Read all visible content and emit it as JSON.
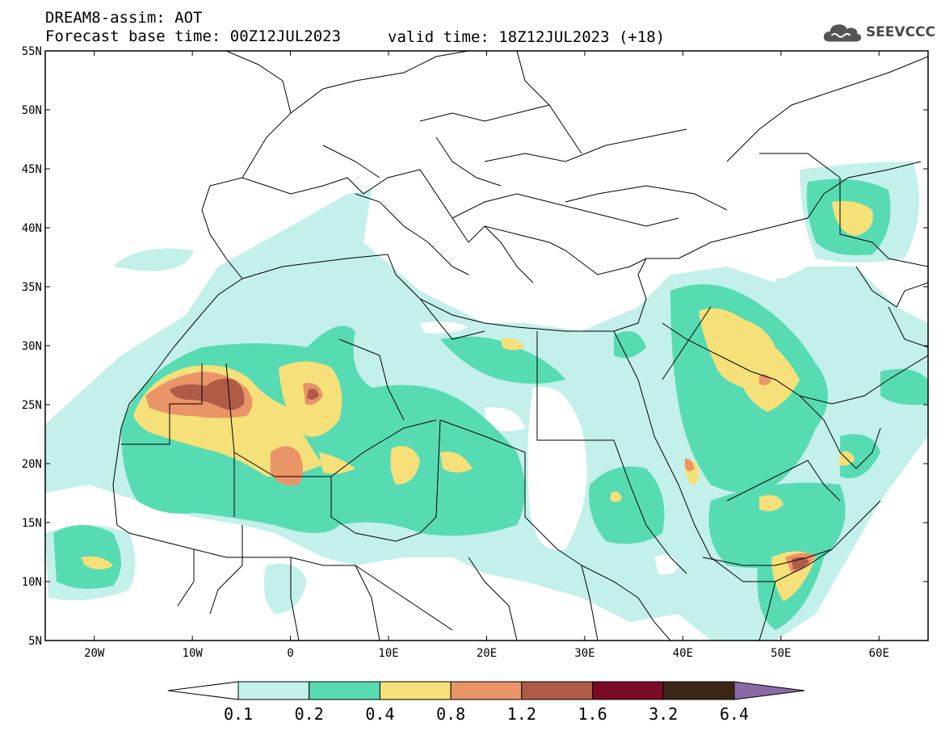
{
  "header": {
    "line1": "DREAM8-assim: AOT",
    "line2": "Forecast base time: 00Z12JUL2023",
    "valid": "valid time: 18Z12JUL2023 (+18)"
  },
  "logo": {
    "text": "SEEVCCC",
    "icon": "cloud-icon"
  },
  "map": {
    "region": {
      "lon_min": -25,
      "lon_max": 65,
      "lat_min": 5,
      "lat_max": 55
    },
    "lat_ticks": [
      {
        "v": 55,
        "label": "55N"
      },
      {
        "v": 50,
        "label": "50N"
      },
      {
        "v": 45,
        "label": "45N"
      },
      {
        "v": 40,
        "label": "40N"
      },
      {
        "v": 35,
        "label": "35N"
      },
      {
        "v": 30,
        "label": "30N"
      },
      {
        "v": 25,
        "label": "25N"
      },
      {
        "v": 20,
        "label": "20N"
      },
      {
        "v": 15,
        "label": "15N"
      },
      {
        "v": 10,
        "label": "10N"
      },
      {
        "v": 5,
        "label": "5N"
      }
    ],
    "lon_ticks": [
      {
        "v": -20,
        "label": "20W"
      },
      {
        "v": -10,
        "label": "10W"
      },
      {
        "v": 0,
        "label": "0"
      },
      {
        "v": 10,
        "label": "10E"
      },
      {
        "v": 20,
        "label": "20E"
      },
      {
        "v": 30,
        "label": "30E"
      },
      {
        "v": 40,
        "label": "40E"
      },
      {
        "v": 50,
        "label": "50E"
      },
      {
        "v": 60,
        "label": "60E"
      }
    ]
  },
  "colorbar": {
    "colors": [
      "#ffffff",
      "#c3f0ea",
      "#57dbb3",
      "#f6e07a",
      "#e99567",
      "#b05a48",
      "#7a0a25",
      "#3b2616",
      "#8a6aa4"
    ],
    "labels": [
      "0.1",
      "0.2",
      "0.4",
      "0.8",
      "1.2",
      "1.6",
      "3.2",
      "6.4"
    ]
  }
}
